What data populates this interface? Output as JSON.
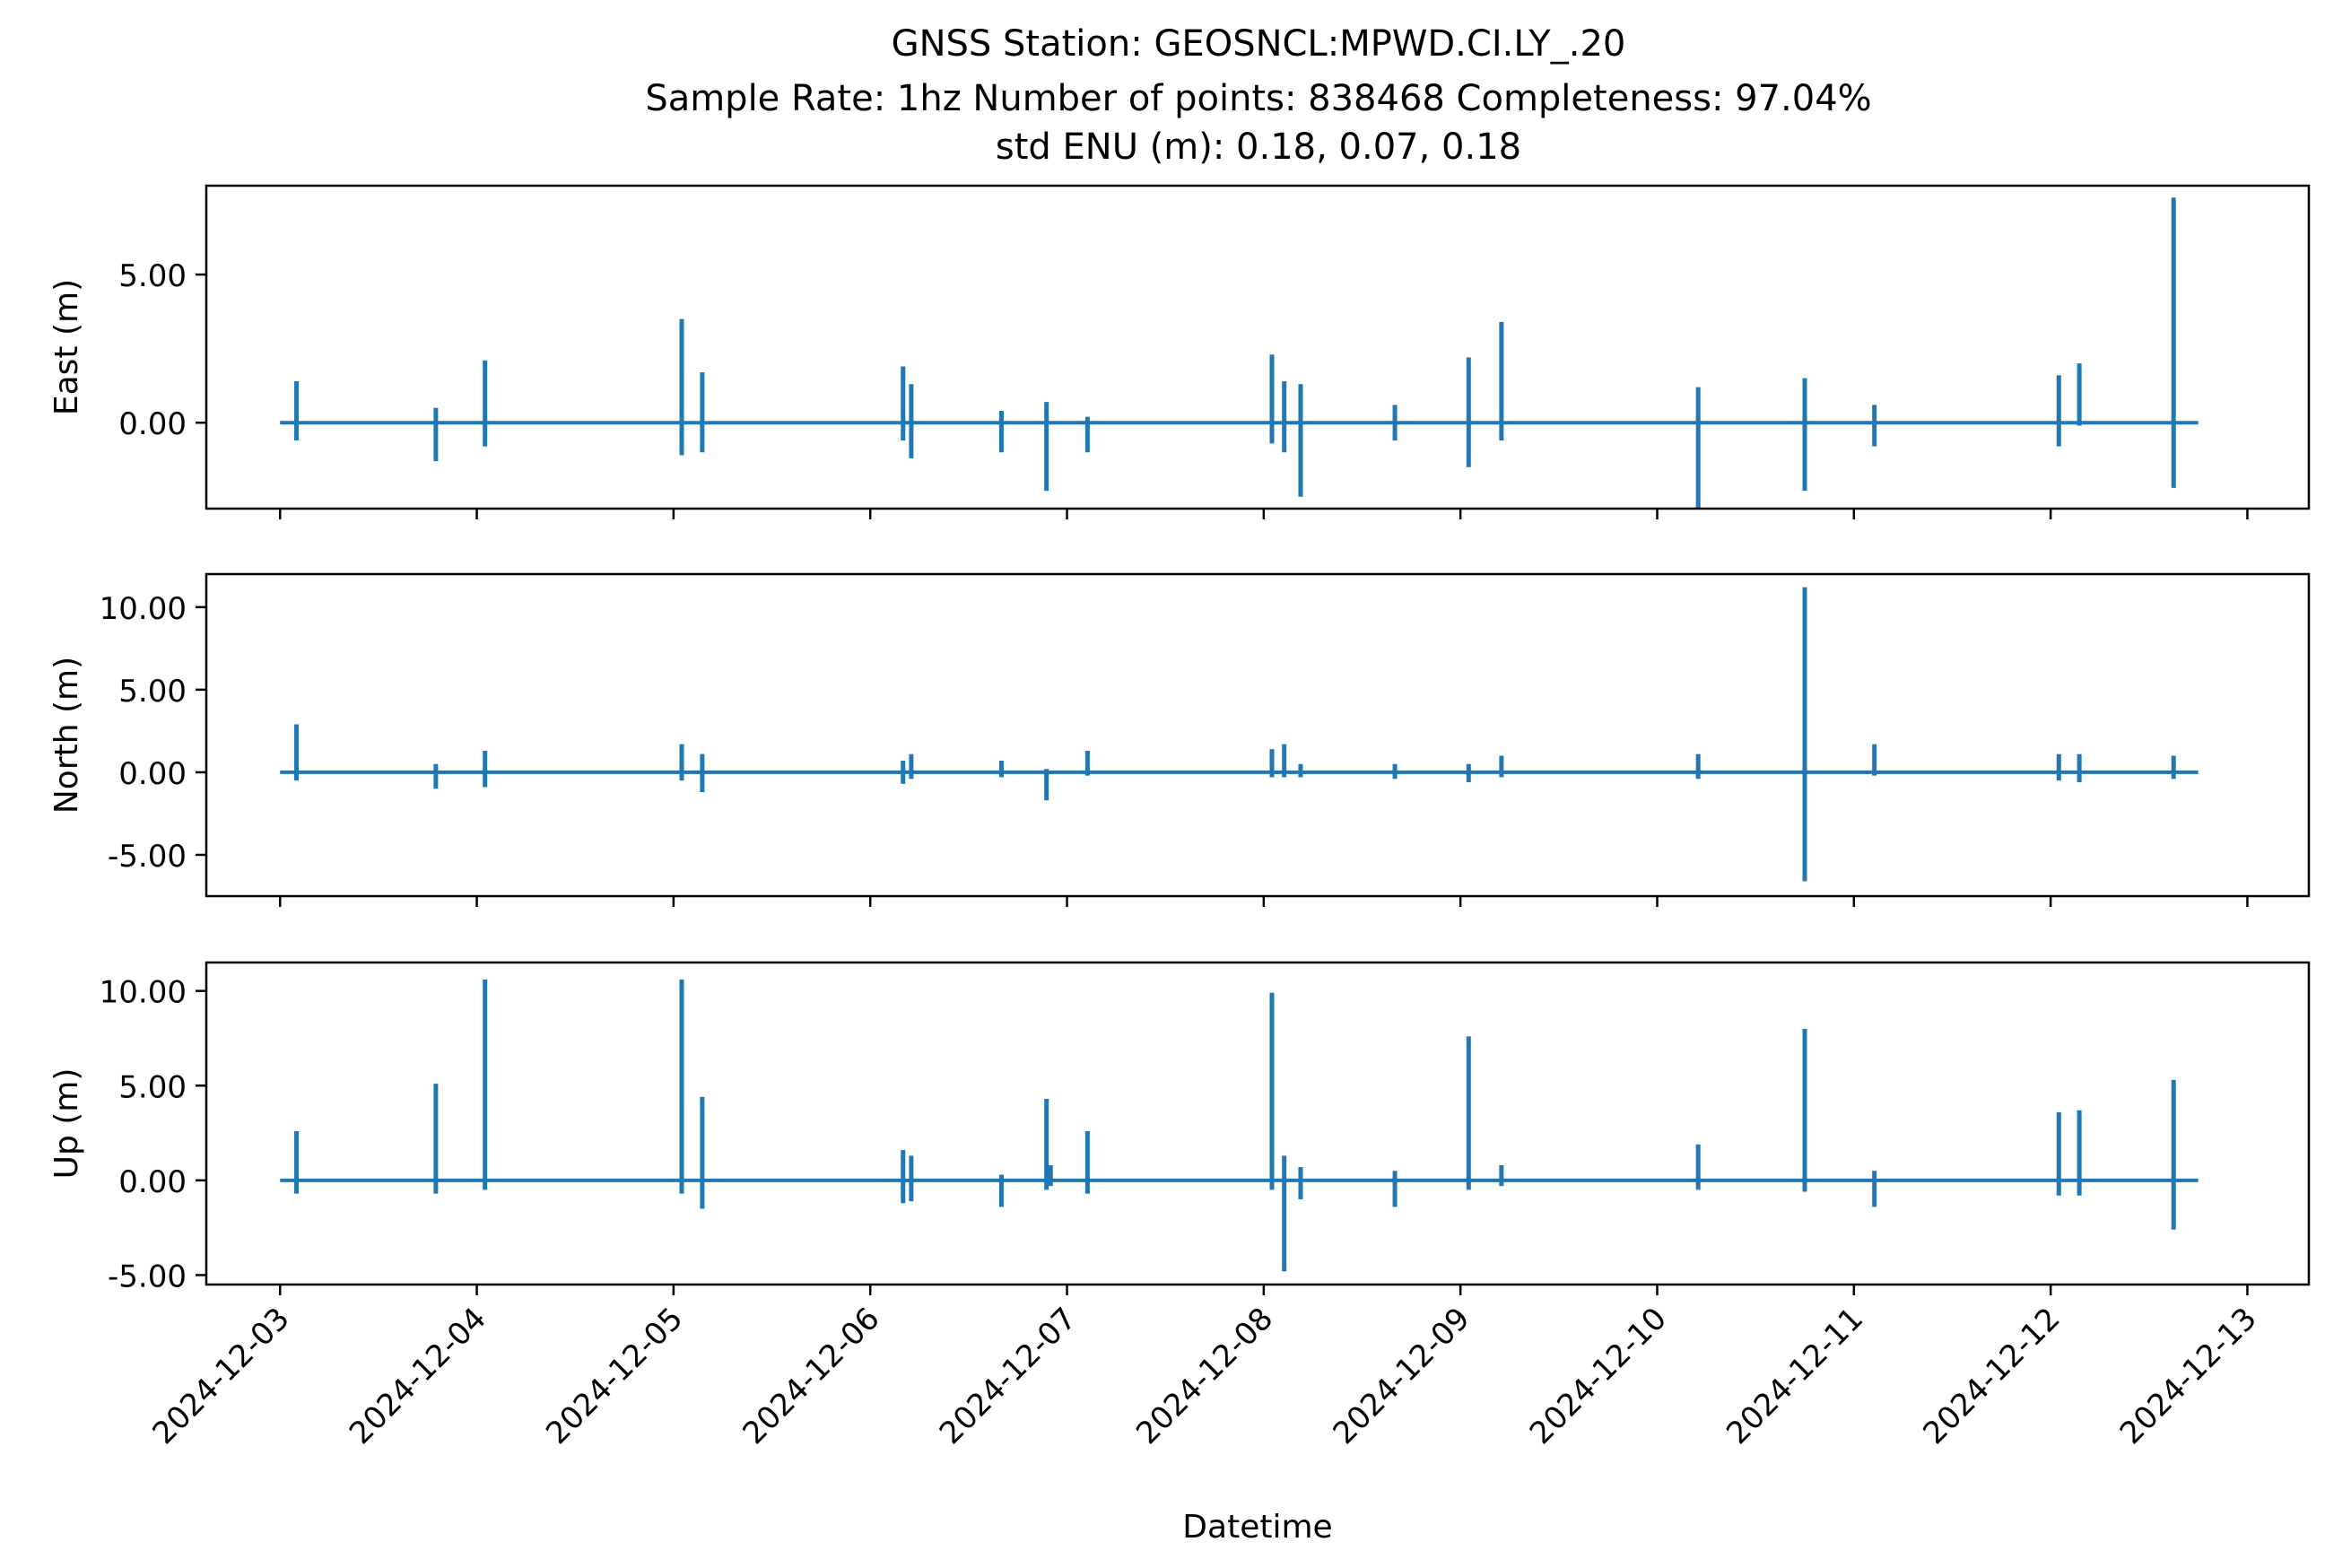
{
  "title": {
    "line1": "GNSS Station: GEOSNCL:MPWD.CI.LY_.20",
    "line2": "Sample Rate: 1hz   Number of points: 838468    Completeness:  97.04%",
    "line3": "std ENU (m):  0.18, 0.07, 0.18"
  },
  "colors": {
    "series": "#1f77b4",
    "axes": "#000000",
    "background": "#ffffff"
  },
  "chart_data": [
    {
      "type": "line",
      "ylabel": "East (m)",
      "xlabel": "",
      "grid": false,
      "ylim": [
        -2.9,
        8.0
      ],
      "yticks": [
        0,
        5
      ],
      "ytick_labels": [
        "0.00",
        "5.00"
      ],
      "baseline": 0.0,
      "spikes": [
        {
          "t": "2024-12-03T02:00",
          "max": 1.4,
          "min": -0.6
        },
        {
          "t": "2024-12-03T19:00",
          "max": 0.5,
          "min": -1.3
        },
        {
          "t": "2024-12-04T01:00",
          "max": 2.1,
          "min": -0.8
        },
        {
          "t": "2024-12-05T01:00",
          "max": 3.5,
          "min": -1.1
        },
        {
          "t": "2024-12-05T03:30",
          "max": 1.7,
          "min": -1.0
        },
        {
          "t": "2024-12-06T04:00",
          "max": 1.9,
          "min": -0.6
        },
        {
          "t": "2024-12-06T05:00",
          "max": 1.3,
          "min": -1.2
        },
        {
          "t": "2024-12-06T16:00",
          "max": 0.4,
          "min": -1.0
        },
        {
          "t": "2024-12-06T21:30",
          "max": 0.7,
          "min": -2.3
        },
        {
          "t": "2024-12-07T02:30",
          "max": 0.2,
          "min": -1.0
        },
        {
          "t": "2024-12-08T01:00",
          "max": 2.3,
          "min": -0.7
        },
        {
          "t": "2024-12-08T02:30",
          "max": 1.4,
          "min": -1.0
        },
        {
          "t": "2024-12-08T04:30",
          "max": 1.3,
          "min": -2.5
        },
        {
          "t": "2024-12-08T16:00",
          "max": 0.6,
          "min": -0.6
        },
        {
          "t": "2024-12-09T01:00",
          "max": 2.2,
          "min": -1.5
        },
        {
          "t": "2024-12-09T05:00",
          "max": 3.4,
          "min": -0.6
        },
        {
          "t": "2024-12-10T05:00",
          "max": 1.2,
          "min": -2.9
        },
        {
          "t": "2024-12-10T18:00",
          "max": 1.5,
          "min": -2.3
        },
        {
          "t": "2024-12-11T02:30",
          "max": 0.6,
          "min": -0.8
        },
        {
          "t": "2024-12-12T01:00",
          "max": 1.6,
          "min": -0.8
        },
        {
          "t": "2024-12-12T03:30",
          "max": 2.0,
          "min": -0.1
        },
        {
          "t": "2024-12-12T15:00",
          "max": 7.6,
          "min": -2.2
        }
      ]
    },
    {
      "type": "line",
      "ylabel": "North (m)",
      "xlabel": "",
      "grid": false,
      "ylim": [
        -7.5,
        12.0
      ],
      "yticks": [
        -5,
        0,
        5,
        10
      ],
      "ytick_labels": [
        "-5.00",
        "0.00",
        "5.00",
        "10.00"
      ],
      "baseline": 0.0,
      "spikes": [
        {
          "t": "2024-12-03T02:00",
          "max": 2.9,
          "min": -0.5
        },
        {
          "t": "2024-12-03T19:00",
          "max": 0.5,
          "min": -1.0
        },
        {
          "t": "2024-12-04T01:00",
          "max": 1.3,
          "min": -0.9
        },
        {
          "t": "2024-12-05T01:00",
          "max": 1.7,
          "min": -0.5
        },
        {
          "t": "2024-12-05T03:30",
          "max": 1.1,
          "min": -1.2
        },
        {
          "t": "2024-12-06T04:00",
          "max": 0.7,
          "min": -0.7
        },
        {
          "t": "2024-12-06T05:00",
          "max": 1.1,
          "min": -0.4
        },
        {
          "t": "2024-12-06T16:00",
          "max": 0.7,
          "min": -0.3
        },
        {
          "t": "2024-12-06T21:30",
          "max": 0.2,
          "min": -1.7
        },
        {
          "t": "2024-12-07T02:30",
          "max": 1.3,
          "min": -0.2
        },
        {
          "t": "2024-12-08T01:00",
          "max": 1.4,
          "min": -0.3
        },
        {
          "t": "2024-12-08T02:30",
          "max": 1.7,
          "min": -0.3
        },
        {
          "t": "2024-12-08T04:30",
          "max": 0.5,
          "min": -0.3
        },
        {
          "t": "2024-12-08T16:00",
          "max": 0.5,
          "min": -0.4
        },
        {
          "t": "2024-12-09T01:00",
          "max": 0.5,
          "min": -0.6
        },
        {
          "t": "2024-12-09T05:00",
          "max": 1.0,
          "min": -0.3
        },
        {
          "t": "2024-12-10T05:00",
          "max": 1.1,
          "min": -0.4
        },
        {
          "t": "2024-12-10T18:00",
          "max": 11.2,
          "min": -6.6
        },
        {
          "t": "2024-12-11T02:30",
          "max": 1.7,
          "min": -0.2
        },
        {
          "t": "2024-12-12T01:00",
          "max": 1.1,
          "min": -0.5
        },
        {
          "t": "2024-12-12T03:30",
          "max": 1.1,
          "min": -0.6
        },
        {
          "t": "2024-12-12T15:00",
          "max": 1.0,
          "min": -0.4
        }
      ]
    },
    {
      "type": "line",
      "ylabel": "Up (m)",
      "xlabel": "Datetime",
      "grid": false,
      "ylim": [
        -5.5,
        11.5
      ],
      "yticks": [
        -5,
        0,
        5,
        10
      ],
      "ytick_labels": [
        "-5.00",
        "0.00",
        "5.00",
        "10.00"
      ],
      "baseline": 0.0,
      "spikes": [
        {
          "t": "2024-12-03T02:00",
          "max": 2.6,
          "min": -0.7
        },
        {
          "t": "2024-12-03T19:00",
          "max": 5.1,
          "min": -0.7
        },
        {
          "t": "2024-12-04T01:00",
          "max": 10.6,
          "min": -0.5
        },
        {
          "t": "2024-12-05T01:00",
          "max": 10.6,
          "min": -0.7
        },
        {
          "t": "2024-12-05T03:30",
          "max": 4.4,
          "min": -1.5
        },
        {
          "t": "2024-12-06T04:00",
          "max": 1.6,
          "min": -1.2
        },
        {
          "t": "2024-12-06T05:00",
          "max": 1.3,
          "min": -1.1
        },
        {
          "t": "2024-12-06T16:00",
          "max": 0.3,
          "min": -1.4
        },
        {
          "t": "2024-12-06T21:30",
          "max": 4.3,
          "min": -0.5
        },
        {
          "t": "2024-12-06T22:00",
          "max": 0.8,
          "min": -0.3
        },
        {
          "t": "2024-12-07T02:30",
          "max": 2.6,
          "min": -0.7
        },
        {
          "t": "2024-12-08T01:00",
          "max": 9.9,
          "min": -0.5
        },
        {
          "t": "2024-12-08T02:30",
          "max": 1.3,
          "min": -4.8
        },
        {
          "t": "2024-12-08T04:30",
          "max": 0.7,
          "min": -1.0
        },
        {
          "t": "2024-12-08T16:00",
          "max": 0.5,
          "min": -1.4
        },
        {
          "t": "2024-12-09T01:00",
          "max": 7.6,
          "min": -0.5
        },
        {
          "t": "2024-12-09T05:00",
          "max": 0.8,
          "min": -0.3
        },
        {
          "t": "2024-12-10T05:00",
          "max": 1.9,
          "min": -0.5
        },
        {
          "t": "2024-12-10T18:00",
          "max": 8.0,
          "min": -0.6
        },
        {
          "t": "2024-12-11T02:30",
          "max": 0.5,
          "min": -1.4
        },
        {
          "t": "2024-12-12T01:00",
          "max": 3.6,
          "min": -0.8
        },
        {
          "t": "2024-12-12T03:30",
          "max": 3.7,
          "min": -0.8
        },
        {
          "t": "2024-12-12T15:00",
          "max": 5.3,
          "min": -2.6
        }
      ]
    }
  ],
  "x_axis": {
    "xlim": [
      "2024-12-02T15:00",
      "2024-12-13T07:30"
    ],
    "data_range": [
      "2024-12-03T00:00",
      "2024-12-12T18:00"
    ],
    "ticks": [
      "2024-12-03",
      "2024-12-04",
      "2024-12-05",
      "2024-12-06",
      "2024-12-07",
      "2024-12-08",
      "2024-12-09",
      "2024-12-10",
      "2024-12-11",
      "2024-12-12",
      "2024-12-13"
    ]
  }
}
